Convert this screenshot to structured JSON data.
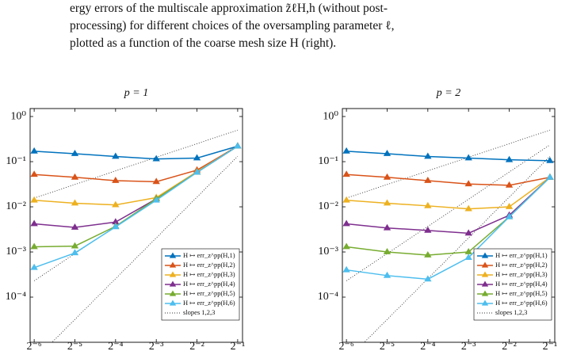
{
  "caption": [
    "ergy errors of the multiscale approximation z̃ℓH,h (without post-",
    "processing) for different choices of the oversampling parameter ℓ,",
    "plotted as a function of the coarse mesh size H (right)."
  ],
  "chart_data": [
    {
      "type": "line",
      "title": "p = 1",
      "xscale": "log",
      "yscale": "log",
      "x": [
        0.015625,
        0.03125,
        0.0625,
        0.125,
        0.25,
        0.5
      ],
      "xlim": [
        0.01458,
        0.543
      ],
      "ylim": [
        1e-05,
        1.5
      ],
      "xticks": [
        {
          "value": 0.015625,
          "label": "2⁻⁶"
        },
        {
          "value": 0.03125,
          "label": "2⁻⁵"
        },
        {
          "value": 0.0625,
          "label": "2⁻⁴"
        },
        {
          "value": 0.125,
          "label": "2⁻³"
        },
        {
          "value": 0.25,
          "label": "2⁻²"
        },
        {
          "value": 0.5,
          "label": "2⁻¹"
        }
      ],
      "yticks": [
        {
          "value": 0.0001,
          "label": "10⁻⁴"
        },
        {
          "value": 0.001,
          "label": "10⁻³"
        },
        {
          "value": 0.01,
          "label": "10⁻²"
        },
        {
          "value": 0.1,
          "label": "10⁻¹"
        },
        {
          "value": 1,
          "label": "10⁰"
        }
      ],
      "legend": "lower right",
      "series": [
        {
          "name": "H ↦ err_z^pp(H,1)",
          "color": "#0072BD",
          "values": [
            0.17,
            0.15,
            0.13,
            0.115,
            0.12,
            0.22
          ]
        },
        {
          "name": "H ↦ err_z^pp(H,2)",
          "color": "#D95319",
          "values": [
            0.052,
            0.045,
            0.038,
            0.036,
            0.065,
            0.22
          ]
        },
        {
          "name": "H ↦ err_z^pp(H,3)",
          "color": "#EDB120",
          "values": [
            0.014,
            0.012,
            0.011,
            0.016,
            0.06,
            0.22
          ]
        },
        {
          "name": "H ↦ err_z^pp(H,4)",
          "color": "#7E2F8E",
          "values": [
            0.0042,
            0.0035,
            0.0046,
            0.015,
            0.058,
            0.22
          ]
        },
        {
          "name": "H ↦ err_z^pp(H,5)",
          "color": "#77AC30",
          "values": [
            0.0013,
            0.00135,
            0.0037,
            0.015,
            0.058,
            0.22
          ]
        },
        {
          "name": "H ↦ err_z^pp(H,6)",
          "color": "#4DBEEE",
          "values": [
            0.00045,
            0.00095,
            0.0036,
            0.014,
            0.058,
            0.22
          ]
        }
      ],
      "slopes": {
        "name": "slopes 1,2,3",
        "color": "#333333",
        "lines": [
          [
            0.0156,
            0.0312,
            0.0625,
            0.125,
            0.25,
            0.5
          ],
          [
            0.00023,
            0.00092,
            0.00368,
            0.0147,
            0.0589,
            0.2355
          ],
          [
            4e-06,
            3.2e-05,
            0.000256,
            0.002048,
            0.016384,
            0.131
          ]
        ]
      }
    },
    {
      "type": "line",
      "title": "p = 2",
      "xscale": "log",
      "yscale": "log",
      "x": [
        0.015625,
        0.03125,
        0.0625,
        0.125,
        0.25,
        0.5
      ],
      "xlim": [
        0.01458,
        0.543
      ],
      "ylim": [
        1e-05,
        1.5
      ],
      "xticks": [
        {
          "value": 0.015625,
          "label": "2⁻⁶"
        },
        {
          "value": 0.03125,
          "label": "2⁻⁵"
        },
        {
          "value": 0.0625,
          "label": "2⁻⁴"
        },
        {
          "value": 0.125,
          "label": "2⁻³"
        },
        {
          "value": 0.25,
          "label": "2⁻²"
        },
        {
          "value": 0.5,
          "label": "2⁻¹"
        }
      ],
      "yticks": [
        {
          "value": 0.0001,
          "label": "10⁻⁴"
        },
        {
          "value": 0.001,
          "label": "10⁻³"
        },
        {
          "value": 0.01,
          "label": "10⁻²"
        },
        {
          "value": 0.1,
          "label": "10⁻¹"
        },
        {
          "value": 1,
          "label": "10⁰"
        }
      ],
      "legend": "lower right",
      "series": [
        {
          "name": "H ↦ err_z^pp(H,1)",
          "color": "#0072BD",
          "values": [
            0.17,
            0.15,
            0.13,
            0.12,
            0.11,
            0.105
          ]
        },
        {
          "name": "H ↦ err_z^pp(H,2)",
          "color": "#D95319",
          "values": [
            0.052,
            0.045,
            0.038,
            0.032,
            0.03,
            0.045
          ]
        },
        {
          "name": "H ↦ err_z^pp(H,3)",
          "color": "#EDB120",
          "values": [
            0.014,
            0.012,
            0.0105,
            0.009,
            0.01,
            0.045
          ]
        },
        {
          "name": "H ↦ err_z^pp(H,4)",
          "color": "#7E2F8E",
          "values": [
            0.0042,
            0.0034,
            0.003,
            0.0026,
            0.0065,
            0.045
          ]
        },
        {
          "name": "H ↦ err_z^pp(H,5)",
          "color": "#77AC30",
          "values": [
            0.0013,
            0.001,
            0.00085,
            0.001,
            0.006,
            0.045
          ]
        },
        {
          "name": "H ↦ err_z^pp(H,6)",
          "color": "#4DBEEE",
          "values": [
            0.0004,
            0.0003,
            0.00025,
            0.00075,
            0.006,
            0.045
          ]
        }
      ],
      "slopes": {
        "name": "slopes 1,2,3",
        "color": "#333333",
        "lines": [
          [
            0.0156,
            0.0312,
            0.0625,
            0.125,
            0.25,
            0.5
          ],
          [
            0.00023,
            0.00092,
            0.00368,
            0.0147,
            0.0589,
            0.2355
          ],
          [
            4e-06,
            3.2e-05,
            0.000256,
            0.002048,
            0.016384,
            0.131
          ]
        ]
      }
    }
  ]
}
